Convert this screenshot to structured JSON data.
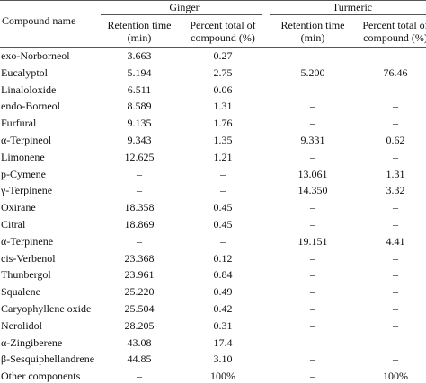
{
  "header": {
    "compound": "Compound name",
    "groups": [
      "Ginger",
      "Turmeric"
    ],
    "subheaders": [
      [
        "Retention time",
        "(min)"
      ],
      [
        "Percent total of",
        "compound (%)"
      ],
      [
        "Retention time",
        "(min)"
      ],
      [
        "Percent total of",
        "compound (%)"
      ]
    ]
  },
  "table": {
    "rows": [
      [
        "exo-Norborneol",
        "3.663",
        "0.27",
        "–",
        "–"
      ],
      [
        "Eucalyptol",
        "5.194",
        "2.75",
        "5.200",
        "76.46"
      ],
      [
        "Linaloloxide",
        "6.511",
        "0.06",
        "–",
        "–"
      ],
      [
        "endo-Borneol",
        "8.589",
        "1.31",
        "–",
        "–"
      ],
      [
        "Furfural",
        "9.135",
        "1.76",
        "–",
        "–"
      ],
      [
        "α-Terpineol",
        "9.343",
        "1.35",
        "9.331",
        "0.62"
      ],
      [
        "Limonene",
        "12.625",
        "1.21",
        "–",
        "–"
      ],
      [
        "p-Cymene",
        "–",
        "–",
        "13.061",
        "1.31"
      ],
      [
        "γ-Terpinene",
        "–",
        "–",
        "14.350",
        "3.32"
      ],
      [
        "Oxirane",
        "18.358",
        "0.45",
        "–",
        "–"
      ],
      [
        "Citral",
        "18.869",
        "0.45",
        "–",
        "–"
      ],
      [
        "α-Terpinene",
        "–",
        "–",
        "19.151",
        "4.41"
      ],
      [
        "cis-Verbenol",
        "23.368",
        "0.12",
        "–",
        "–"
      ],
      [
        "Thunbergol",
        "23.961",
        "0.84",
        "–",
        "–"
      ],
      [
        "Squalene",
        "25.220",
        "0.49",
        "–",
        "–"
      ],
      [
        "Caryophyllene oxide",
        "25.504",
        "0.42",
        "–",
        "–"
      ],
      [
        "Nerolidol",
        "28.205",
        "0.31",
        "–",
        "–"
      ],
      [
        "α-Zingiberene",
        "43.08",
        "17.4",
        "–",
        "–"
      ],
      [
        "β-Sesquiphellandrene",
        "44.85",
        "3.10",
        "–",
        "–"
      ],
      [
        "Other components",
        "–",
        "100%",
        "–",
        "100%"
      ]
    ]
  }
}
